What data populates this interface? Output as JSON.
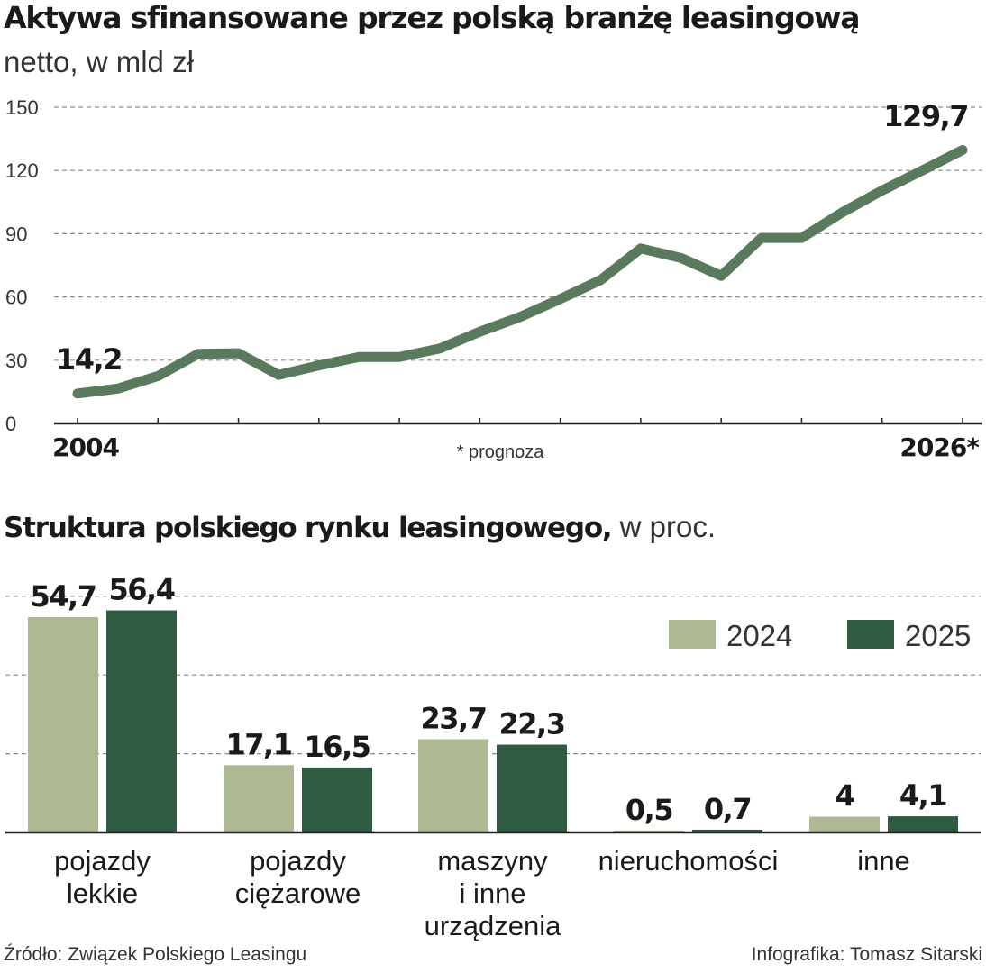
{
  "chart_data": [
    {
      "type": "line",
      "title": "Aktywa sfinansowane przez polską branżę leasingową",
      "subtitle": "netto, w mld zł",
      "y_ticks": [
        "0",
        "30",
        "60",
        "90",
        "120",
        "150"
      ],
      "ylim": [
        0,
        150
      ],
      "x_start_label": "2004",
      "x_end_label": "2026*",
      "footnote": "* prognoza",
      "first_value_label": "14,2",
      "last_value_label": "129,7",
      "x": [
        2004,
        2005,
        2006,
        2007,
        2008,
        2009,
        2010,
        2011,
        2012,
        2013,
        2014,
        2015,
        2016,
        2017,
        2018,
        2019,
        2020,
        2021,
        2022,
        2023,
        2024,
        2025,
        2026
      ],
      "values": [
        14.2,
        16.5,
        22.5,
        33.0,
        33.3,
        23.0,
        27.5,
        31.5,
        31.5,
        35.5,
        43.5,
        50.5,
        59.0,
        68.0,
        83.0,
        78.5,
        70.0,
        88.0,
        88.0,
        100.0,
        110.5,
        120.0,
        129.7
      ],
      "grid": true
    },
    {
      "type": "bar",
      "title_bold": "Struktura polskiego rynku leasingowego,",
      "title_rest": " w proc.",
      "categories": [
        [
          "pojazdy",
          "lekkie"
        ],
        [
          "pojazdy",
          "ciężarowe"
        ],
        [
          "maszyny",
          "i inne",
          "urządzenia"
        ],
        [
          "nieruchomości"
        ],
        [
          "inne"
        ]
      ],
      "series": [
        {
          "name": "2024",
          "color": "#adb992",
          "values": [
            54.7,
            17.1,
            23.7,
            0.5,
            4
          ],
          "labels": [
            "54,7",
            "17,1",
            "23,7",
            "0,5",
            "4"
          ]
        },
        {
          "name": "2025",
          "color": "#2e5b42",
          "values": [
            56.4,
            16.5,
            22.3,
            0.7,
            4.1
          ],
          "labels": [
            "56,4",
            "16,5",
            "22,3",
            "0,7",
            "4,1"
          ]
        }
      ],
      "ylim": [
        0,
        60
      ],
      "grid": true,
      "legend_position": "top-right"
    }
  ],
  "footer": {
    "source": "Źródło: Związek Polskiego Leasingu",
    "credit": "Infografika: Tomasz Sitarski"
  },
  "colors": {
    "line": "#5a7a5e",
    "grid": "#8a8a8a",
    "axis": "#222222"
  }
}
